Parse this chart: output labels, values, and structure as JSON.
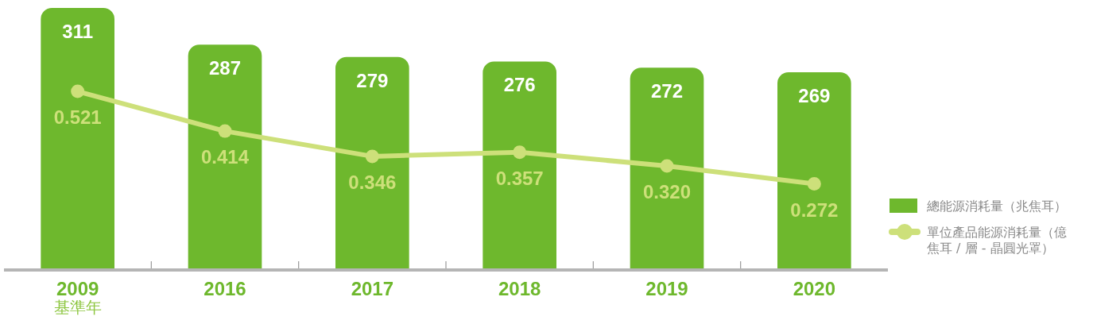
{
  "chart_data": {
    "type": "bar",
    "categories": [
      "2009",
      "2016",
      "2017",
      "2018",
      "2019",
      "2020"
    ],
    "series": [
      {
        "name": "總能源消耗量（兆焦耳）",
        "color": "#6eb82d",
        "values": [
          311,
          287,
          279,
          276,
          272,
          269
        ],
        "value_labels": [
          "311",
          "287",
          "279",
          "276",
          "272",
          "269"
        ]
      },
      {
        "name": "單位產品能源消耗量（億焦耳 / 層 - 晶圓光罩）",
        "type": "line",
        "axis": "y2",
        "color": "#cde07a",
        "marker": "circle",
        "values": [
          0.521,
          0.414,
          0.346,
          0.357,
          0.32,
          0.272
        ],
        "value_labels": [
          "0.521",
          "0.414",
          "0.346",
          "0.357",
          "0.320",
          "0.272"
        ]
      }
    ],
    "ylim": [
      140,
      312
    ],
    "y2lim": [
      0.04,
      0.75
    ],
    "tick_labels": "x",
    "legend": "right",
    "annotations": [
      "基準年"
    ]
  }
}
